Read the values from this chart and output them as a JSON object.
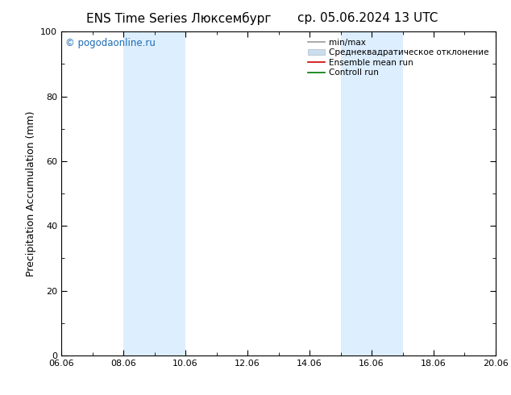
{
  "title_left": "ENS Time Series Люксембург",
  "title_right": "ср. 05.06.2024 13 UTC",
  "ylabel": "Precipitation Accumulation (mm)",
  "ylim": [
    0,
    100
  ],
  "yticks": [
    0,
    20,
    40,
    60,
    80,
    100
  ],
  "xlim_start": 0,
  "xlim_end": 14,
  "xtick_labels": [
    "06.06",
    "08.06",
    "10.06",
    "12.06",
    "14.06",
    "16.06",
    "18.06",
    "20.06"
  ],
  "xtick_positions": [
    0,
    2,
    4,
    6,
    8,
    10,
    12,
    14
  ],
  "shaded_regions": [
    {
      "start": 2,
      "end": 4,
      "color": "#ddeeff"
    },
    {
      "start": 9,
      "end": 11,
      "color": "#ddeeff"
    }
  ],
  "watermark": "© pogodaonline.ru",
  "watermark_color": "#1a6bb5",
  "legend_entries": [
    {
      "label": "min/max",
      "color": "#999999",
      "type": "line",
      "lw": 1.2
    },
    {
      "label": "Среднеквадратическое отклонение",
      "color": "#ccddee",
      "type": "patch"
    },
    {
      "label": "Ensemble mean run",
      "color": "#cc0000",
      "type": "line",
      "lw": 1.2
    },
    {
      "label": "Controll run",
      "color": "#007700",
      "type": "line",
      "lw": 1.2
    }
  ],
  "bg_color": "#ffffff",
  "tick_fontsize": 8,
  "label_fontsize": 9,
  "title_fontsize": 11
}
